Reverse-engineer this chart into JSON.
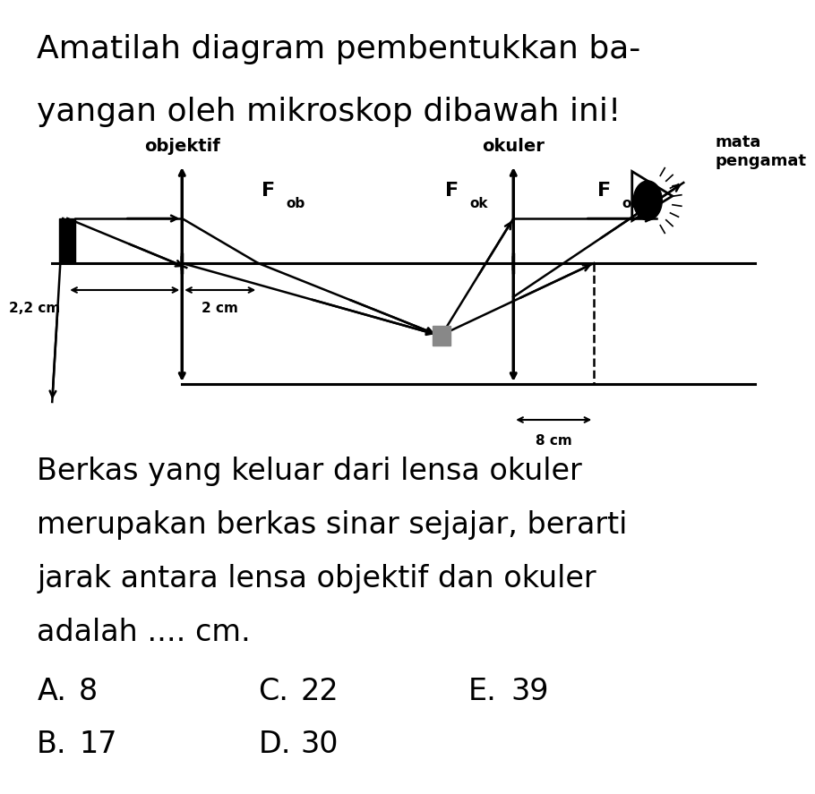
{
  "title_line1": "Amatilah diagram pembentukkan ba-",
  "title_line2": "yangan oleh mikroskop dibawah ini!",
  "question_text": "Berkas yang keluar dari lensa okuler\nmerupakan berkas sinar sejajar, berarti\njarak antara lensa objektif dan okuler\nadalah .... cm.",
  "options_row1": [
    [
      "A.",
      "8"
    ],
    [
      "C.",
      "22"
    ],
    [
      "E.",
      "39"
    ]
  ],
  "options_row2": [
    [
      "B.",
      "17"
    ],
    [
      "D.",
      "30"
    ]
  ],
  "label_objektif": "objektif",
  "label_okuler": "okuler",
  "label_mata": "mata\npengamat",
  "label_fob": "F",
  "label_fob_sub": "ob",
  "label_fok1": "F",
  "label_fok1_sub": "ok",
  "label_fok2": "F",
  "label_fok2_sub": "ok",
  "label_22cm": "2,2 cm",
  "label_2cm": "2 cm",
  "label_8cm": "8 cm",
  "bg_color": "#ffffff",
  "fg_color": "#000000"
}
